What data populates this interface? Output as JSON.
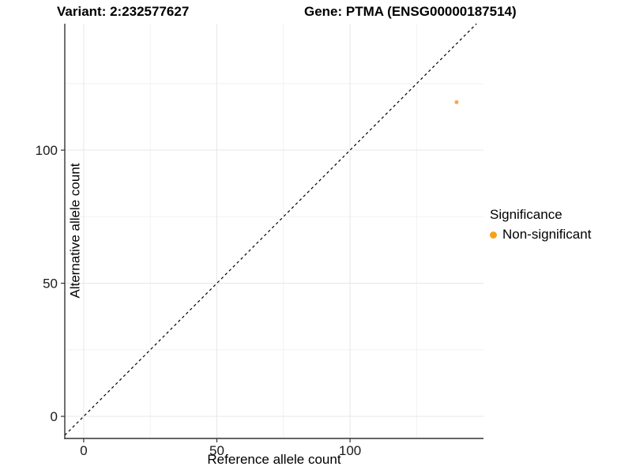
{
  "titles": {
    "variant": "Variant: 2:232577627",
    "gene": "Gene: PTMA (ENSG00000187514)"
  },
  "axes": {
    "x": {
      "title": "Reference allele count"
    },
    "y": {
      "title": "Alternative allele count"
    }
  },
  "legend": {
    "title": "Significance",
    "items": [
      {
        "label": "Non-significant",
        "color": "#F9A01B"
      }
    ]
  },
  "colors": {
    "background": "#ffffff",
    "point": "#F8A64A",
    "legend_key": "#F9A01B",
    "grid_major": "#e7e7e7",
    "grid_minor": "#f2f2f2",
    "axis_line": "#333333",
    "tick_text": "#1a1a1a",
    "abline": "#000000"
  },
  "chart_data": {
    "type": "scatter",
    "title": "Variant: 2:232577627   Gene: PTMA (ENSG00000187514)",
    "xlabel": "Reference allele count",
    "ylabel": "Alternative allele count",
    "xlim": [
      -7.1,
      150.1
    ],
    "ylim": [
      -8.3,
      147.5
    ],
    "x_major_ticks": [
      0,
      50,
      100
    ],
    "y_major_ticks": [
      0,
      50,
      100
    ],
    "x_minor_ticks": [
      25,
      75,
      125
    ],
    "y_minor_ticks": [
      25,
      75,
      125
    ],
    "grid": true,
    "legend_position": "right",
    "series": [
      {
        "name": "Non-significant",
        "points": [
          {
            "x": 140,
            "y": 118
          }
        ]
      }
    ],
    "abline": {
      "slope": 1,
      "intercept": 0,
      "style": "dashed"
    }
  }
}
